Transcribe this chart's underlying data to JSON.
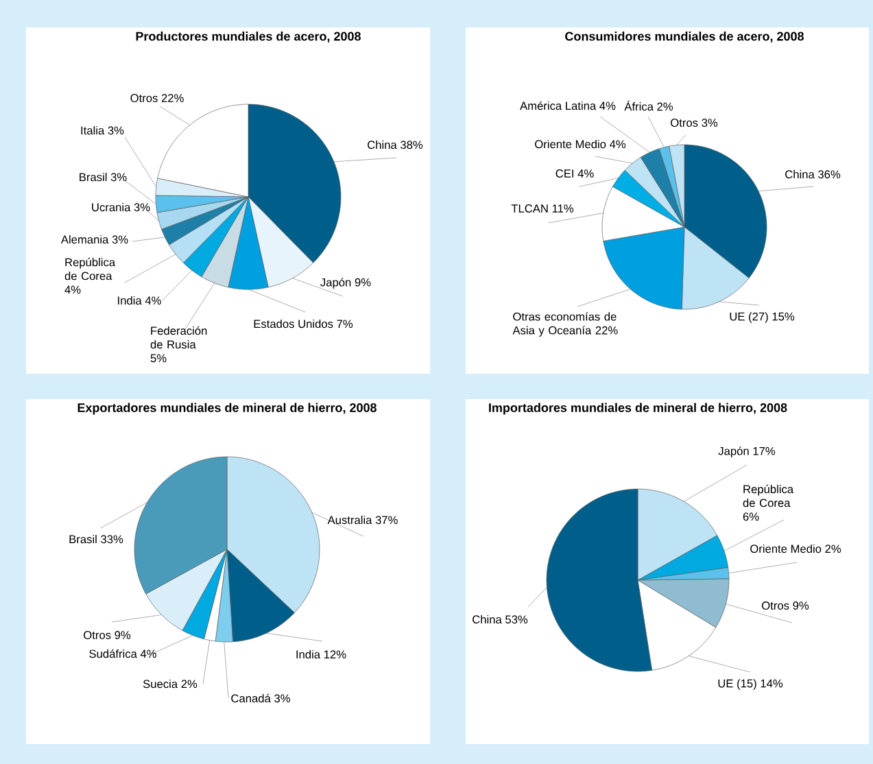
{
  "chart_data": [
    {
      "type": "pie",
      "title": "Productores mundiales de acero, 2008",
      "categories": [
        "China",
        "Japón",
        "Estados Unidos",
        "Federación de Rusia",
        "India",
        "República de Corea",
        "Alemania",
        "Ucrania",
        "Brasil",
        "Italia",
        "Otros"
      ],
      "values": [
        38,
        9,
        7,
        5,
        4,
        4,
        3,
        3,
        3,
        3,
        22
      ],
      "value_labels": [
        "38%",
        "9%",
        "7%",
        "5%",
        "4%",
        "4%",
        "3%",
        "3%",
        "3%",
        "3%",
        "22%"
      ],
      "colors": [
        "#005f8a",
        "#e8f4fb",
        "#00a0e0",
        "#c8dce6",
        "#00a9e0",
        "#b5dff5",
        "#1e7fa8",
        "#a8d8f0",
        "#5bc0eb",
        "#daeefa",
        "#ffffff"
      ]
    },
    {
      "type": "pie",
      "title": "Consumidores mundiales de acero, 2008",
      "categories": [
        "China",
        "UE (27)",
        "Otras economías de Asia y Oceanía",
        "TLCAN",
        "CEI",
        "Oriente Medio",
        "América Latina",
        "África",
        "Otros"
      ],
      "values": [
        36,
        15,
        22,
        11,
        4,
        4,
        4,
        2,
        3
      ],
      "value_labels": [
        "36%",
        "15%",
        "22%",
        "11%",
        "4%",
        "4%",
        "4%",
        "2%",
        "3%"
      ],
      "colors": [
        "#005f8a",
        "#bde3f5",
        "#009fdf",
        "#ffffff",
        "#00aee6",
        "#bde3f5",
        "#1e7fa8",
        "#5bc0eb",
        "#bde3f5"
      ]
    },
    {
      "type": "pie",
      "title": "Exportadores mundiales de mineral de hierro, 2008",
      "categories": [
        "Australia",
        "India",
        "Canadá",
        "Suecia",
        "Sudáfrica",
        "Otros",
        "Brasil"
      ],
      "values": [
        37,
        12,
        3,
        2,
        4,
        9,
        33
      ],
      "value_labels": [
        "37%",
        "12%",
        "3%",
        "2%",
        "4%",
        "9%",
        "33%"
      ],
      "colors": [
        "#bde3f5",
        "#005f8a",
        "#7fcdee",
        "#ffffff",
        "#00a9e0",
        "#daeefa",
        "#4a9bba"
      ]
    },
    {
      "type": "pie",
      "title": "Importadores mundiales de mineral de hierro, 2008",
      "categories": [
        "Japón",
        "República de Corea",
        "Oriente Medio",
        "Otros",
        "UE (15)",
        "China"
      ],
      "values": [
        17,
        6,
        2,
        9,
        14,
        53
      ],
      "value_labels": [
        "17%",
        "6%",
        "2%",
        "9%",
        "14%",
        "53%"
      ],
      "colors": [
        "#bde3f5",
        "#00a9e0",
        "#5bc0eb",
        "#8fbcd0",
        "#ffffff",
        "#005f8a"
      ]
    }
  ]
}
